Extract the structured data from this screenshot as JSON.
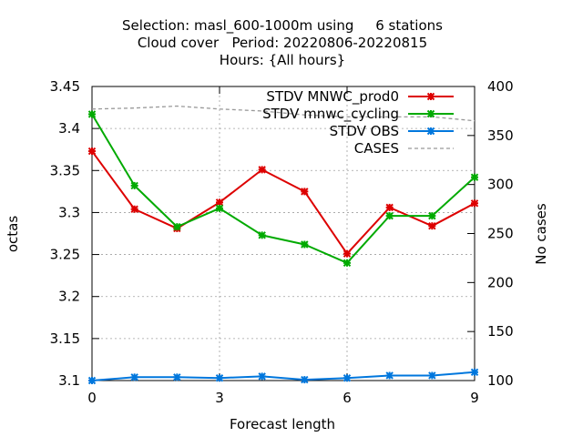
{
  "chart_data": {
    "type": "line",
    "title_lines": [
      "Selection: masl_600-1000m using     6 stations",
      "Cloud cover   Period: 20220806-20220815",
      "Hours: {All hours}"
    ],
    "xlabel": "Forecast length",
    "ylabel": "octas",
    "y2label": "No cases",
    "xlim": [
      0,
      9
    ],
    "ylim": [
      3.1,
      3.45
    ],
    "y2lim": [
      100,
      400
    ],
    "xticks": [
      "0",
      "3",
      "6",
      "9"
    ],
    "yticks": [
      "3.1",
      "3.15",
      "3.2",
      "3.25",
      "3.3",
      "3.35",
      "3.4",
      "3.45"
    ],
    "y2ticks": [
      "100",
      "150",
      "200",
      "250",
      "300",
      "350",
      "400"
    ],
    "grid": true,
    "legend_position": "top-right",
    "x": [
      0,
      1,
      2,
      3,
      4,
      5,
      6,
      7,
      8,
      9
    ],
    "series": [
      {
        "name": "STDV MNWC_prod0",
        "axis": "y",
        "color": "#dd0000",
        "marker": "x",
        "values": [
          3.373,
          3.304,
          3.281,
          3.312,
          3.351,
          3.325,
          3.251,
          3.306,
          3.284,
          3.311
        ]
      },
      {
        "name": "STDV mnwc_cycling",
        "axis": "y",
        "color": "#00aa00",
        "marker": "x",
        "values": [
          3.417,
          3.332,
          3.283,
          3.305,
          3.273,
          3.262,
          3.24,
          3.296,
          3.296,
          3.342
        ]
      },
      {
        "name": "STDV OBS",
        "axis": "y",
        "color": "#0077dd",
        "marker": "x",
        "values": [
          3.1,
          3.104,
          3.104,
          3.103,
          3.105,
          3.101,
          3.103,
          3.106,
          3.106,
          3.11
        ]
      },
      {
        "name": "CASES",
        "axis": "y2",
        "color": "#999999",
        "marker": "none",
        "dashed": true,
        "values": [
          377,
          378,
          380,
          377,
          375,
          371,
          369,
          369,
          369,
          365
        ]
      }
    ]
  }
}
